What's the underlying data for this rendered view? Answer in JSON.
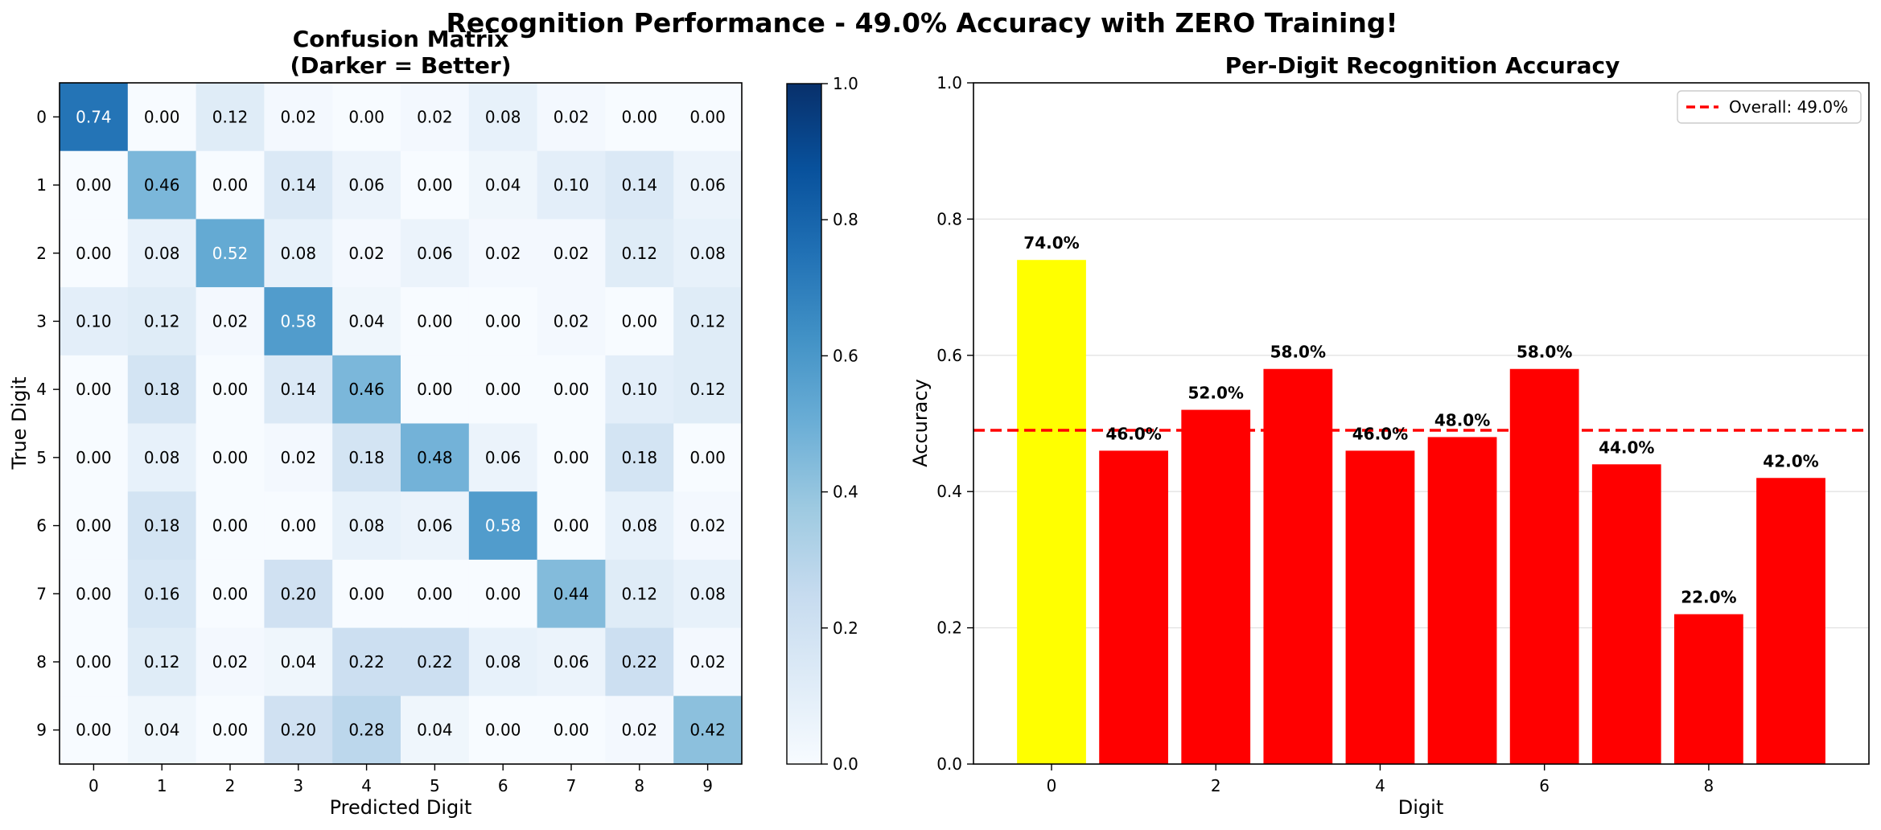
{
  "figure": {
    "title": "Recognition Performance - 49.0% Accuracy with ZERO Training!"
  },
  "chart_data": [
    {
      "type": "heatmap",
      "title_line1": "Confusion Matrix",
      "title_line2": "(Darker = Better)",
      "xlabel": "Predicted Digit",
      "ylabel": "True Digit",
      "x_ticks": [
        "0",
        "1",
        "2",
        "3",
        "4",
        "5",
        "6",
        "7",
        "8",
        "9"
      ],
      "y_ticks": [
        "0",
        "1",
        "2",
        "3",
        "4",
        "5",
        "6",
        "7",
        "8",
        "9"
      ],
      "colormap": "Blues",
      "colorbar": {
        "range": [
          0,
          1
        ],
        "ticks": [
          "0.0",
          "0.2",
          "0.4",
          "0.6",
          "0.8",
          "1.0"
        ]
      },
      "matrix": [
        [
          0.74,
          0.0,
          0.12,
          0.02,
          0.0,
          0.02,
          0.08,
          0.02,
          0.0,
          0.0
        ],
        [
          0.0,
          0.46,
          0.0,
          0.14,
          0.06,
          0.0,
          0.04,
          0.1,
          0.14,
          0.06
        ],
        [
          0.0,
          0.08,
          0.52,
          0.08,
          0.02,
          0.06,
          0.02,
          0.02,
          0.12,
          0.08
        ],
        [
          0.1,
          0.12,
          0.02,
          0.58,
          0.04,
          0.0,
          0.0,
          0.02,
          0.0,
          0.12
        ],
        [
          0.0,
          0.18,
          0.0,
          0.14,
          0.46,
          0.0,
          0.0,
          0.0,
          0.1,
          0.12
        ],
        [
          0.0,
          0.08,
          0.0,
          0.02,
          0.18,
          0.48,
          0.06,
          0.0,
          0.18,
          0.0
        ],
        [
          0.0,
          0.18,
          0.0,
          0.0,
          0.08,
          0.06,
          0.58,
          0.0,
          0.08,
          0.02
        ],
        [
          0.0,
          0.16,
          0.0,
          0.2,
          0.0,
          0.0,
          0.0,
          0.44,
          0.12,
          0.08
        ],
        [
          0.0,
          0.12,
          0.02,
          0.04,
          0.22,
          0.22,
          0.08,
          0.06,
          0.22,
          0.02
        ],
        [
          0.0,
          0.04,
          0.0,
          0.2,
          0.28,
          0.04,
          0.0,
          0.0,
          0.02,
          0.42
        ]
      ]
    },
    {
      "type": "bar",
      "title": "Per-Digit Recognition Accuracy",
      "xlabel": "Digit",
      "ylabel": "Accuracy",
      "categories": [
        0,
        1,
        2,
        3,
        4,
        5,
        6,
        7,
        8,
        9
      ],
      "values": [
        0.74,
        0.46,
        0.52,
        0.58,
        0.46,
        0.48,
        0.58,
        0.44,
        0.22,
        0.42
      ],
      "value_labels": [
        "74.0%",
        "46.0%",
        "52.0%",
        "58.0%",
        "46.0%",
        "48.0%",
        "58.0%",
        "44.0%",
        "22.0%",
        "42.0%"
      ],
      "bar_colors": [
        "#ffff00",
        "#ff0000",
        "#ff0000",
        "#ff0000",
        "#ff0000",
        "#ff0000",
        "#ff0000",
        "#ff0000",
        "#ff0000",
        "#ff0000"
      ],
      "x_ticks": [
        "0",
        "2",
        "4",
        "6",
        "8"
      ],
      "y_ticks": [
        "0.0",
        "0.2",
        "0.4",
        "0.6",
        "0.8",
        "1.0"
      ],
      "ylim": [
        0,
        1
      ],
      "grid": "y",
      "reference_line": {
        "value": 0.49,
        "color": "#ff0000",
        "style": "dashed",
        "label": "Overall: 49.0%"
      },
      "legend_position": "top-right"
    }
  ]
}
